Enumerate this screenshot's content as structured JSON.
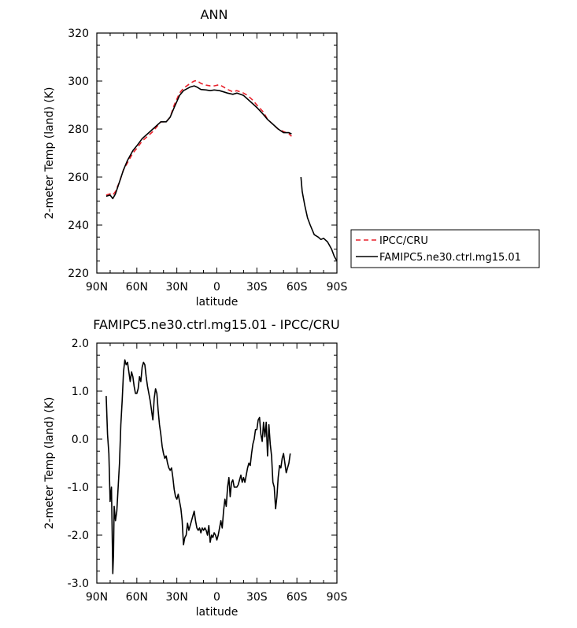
{
  "chart_data": [
    {
      "type": "line",
      "title": "ANN",
      "xlabel": "latitude",
      "ylabel": "2-meter Temp (land) (K)",
      "x_ticks": [
        "90N",
        "60N",
        "30N",
        "0",
        "30S",
        "60S",
        "90S"
      ],
      "y_ticks": [
        "320",
        "300",
        "280",
        "260",
        "240",
        "220"
      ],
      "xlim": [
        90,
        -90
      ],
      "ylim": [
        220,
        320
      ],
      "legend_position": "right",
      "series": [
        {
          "name": "IPCC/CRU",
          "style": "dashed",
          "color": "#e8202a",
          "x": [
            83,
            80,
            78,
            76,
            73,
            70,
            67,
            63,
            60,
            56,
            52,
            48,
            45,
            42,
            38,
            35,
            32,
            28,
            25,
            20,
            17,
            15,
            12,
            8,
            5,
            2,
            -2,
            -5,
            -8,
            -12,
            -15,
            -20,
            -23,
            -27,
            -30,
            -35,
            -38,
            -42,
            -46,
            -50,
            -54,
            -56
          ],
          "y": [
            252.5,
            253,
            252.5,
            254,
            258,
            263,
            266,
            270,
            272,
            275,
            277,
            279,
            281,
            283,
            283,
            285,
            290,
            295,
            297,
            299,
            300,
            300.2,
            299,
            298.3,
            298,
            298,
            298.5,
            297.5,
            296.5,
            295.5,
            296,
            295,
            294,
            292,
            290,
            287,
            284,
            282,
            280,
            279,
            278,
            277
          ]
        },
        {
          "name": "FAMIPC5.ne30.ctrl.mg15.01",
          "style": "solid",
          "color": "#000000",
          "segments": [
            {
              "x": [
                83,
                80,
                78,
                76,
                73,
                70,
                67,
                63,
                60,
                56,
                52,
                48,
                45,
                42,
                38,
                35,
                32,
                28,
                25,
                20,
                17,
                15,
                12,
                8,
                5,
                2,
                -2,
                -5,
                -8,
                -12,
                -15,
                -20,
                -23,
                -27,
                -30,
                -35,
                -38,
                -42,
                -46,
                -50,
                -54,
                -56
              ],
              "y": [
                252,
                252.5,
                251,
                253,
                258,
                263,
                267,
                271,
                273,
                276,
                278,
                280,
                281.5,
                283,
                283,
                285,
                289,
                294,
                296,
                297.5,
                298,
                297.5,
                296.5,
                296.3,
                296,
                296.3,
                296,
                295.5,
                295,
                294.5,
                295,
                294,
                292.5,
                290.5,
                289,
                286,
                284,
                282,
                280,
                278.5,
                278.5,
                278
              ]
            },
            {
              "x": [
                -63,
                -64,
                -66,
                -68,
                -70,
                -73,
                -76,
                -78,
                -80,
                -83,
                -86,
                -88,
                -90
              ],
              "y": [
                260,
                254,
                248,
                243,
                240,
                236,
                235,
                234,
                234.5,
                233,
                230,
                227,
                225
              ]
            }
          ]
        }
      ]
    },
    {
      "type": "line",
      "title": "FAMIPC5.ne30.ctrl.mg15.01 - IPCC/CRU",
      "xlabel": "latitude",
      "ylabel": "2-meter Temp (land) (K)",
      "x_ticks": [
        "90N",
        "60N",
        "30N",
        "0",
        "30S",
        "60S",
        "90S"
      ],
      "y_ticks": [
        "2.0",
        "1.0",
        "0.0",
        "-1.0",
        "-2.0",
        "-3.0"
      ],
      "xlim": [
        90,
        -90
      ],
      "ylim": [
        -3.0,
        2.0
      ],
      "series": [
        {
          "style": "solid",
          "color": "#000000",
          "x": [
            83,
            82,
            81,
            80,
            79,
            78,
            77.5,
            77,
            76,
            75,
            74,
            73,
            72,
            71,
            70,
            69,
            68,
            67,
            66,
            65,
            64,
            63,
            62,
            61,
            60,
            59,
            58,
            57,
            56,
            55,
            54,
            53,
            52,
            51,
            50,
            49,
            48,
            47,
            46,
            45,
            44,
            43,
            42,
            41,
            40,
            39,
            38,
            37,
            36,
            35,
            34,
            33,
            32,
            31,
            30,
            29,
            28,
            27,
            26,
            25,
            24,
            23,
            22,
            21,
            20,
            19,
            18,
            17,
            16,
            15,
            14,
            13,
            12,
            11,
            10,
            9,
            8,
            7,
            6,
            5,
            4,
            3,
            2,
            1,
            0,
            -1,
            -2,
            -3,
            -4,
            -5,
            -6,
            -7,
            -8,
            -9,
            -10,
            -11,
            -12,
            -13,
            -14,
            -15,
            -16,
            -17,
            -18,
            -19,
            -20,
            -21,
            -22,
            -23,
            -24,
            -25,
            -26,
            -27,
            -28,
            -29,
            -30,
            -31,
            -32,
            -33,
            -34,
            -35,
            -36,
            -37,
            -38,
            -39,
            -40,
            -41,
            -42,
            -43,
            -44,
            -45,
            -46,
            -47,
            -48,
            -49,
            -50,
            -51,
            -52,
            -53,
            -54,
            -55
          ],
          "y": [
            0.9,
            0.1,
            -0.3,
            -1.3,
            -1.0,
            -2.8,
            -2.4,
            -1.4,
            -1.7,
            -1.5,
            -1.0,
            -0.5,
            0.3,
            0.8,
            1.4,
            1.65,
            1.55,
            1.6,
            1.4,
            1.2,
            1.4,
            1.3,
            1.1,
            0.95,
            0.95,
            1.05,
            1.3,
            1.2,
            1.5,
            1.6,
            1.55,
            1.3,
            1.1,
            0.95,
            0.8,
            0.6,
            0.4,
            0.85,
            1.05,
            0.95,
            0.6,
            0.3,
            0.1,
            -0.15,
            -0.3,
            -0.4,
            -0.35,
            -0.5,
            -0.6,
            -0.65,
            -0.6,
            -0.8,
            -1.05,
            -1.2,
            -1.25,
            -1.15,
            -1.3,
            -1.45,
            -1.7,
            -2.2,
            -2.05,
            -2.0,
            -1.75,
            -1.9,
            -1.8,
            -1.7,
            -1.6,
            -1.5,
            -1.7,
            -1.85,
            -1.9,
            -1.85,
            -1.95,
            -1.85,
            -1.9,
            -1.85,
            -1.9,
            -2.0,
            -1.8,
            -2.15,
            -2.0,
            -2.05,
            -1.95,
            -2.0,
            -2.1,
            -2.0,
            -1.85,
            -1.7,
            -1.85,
            -1.5,
            -1.25,
            -1.4,
            -1.0,
            -0.8,
            -1.2,
            -0.9,
            -0.85,
            -1.0,
            -1.0,
            -1.0,
            -0.95,
            -0.85,
            -0.75,
            -0.9,
            -0.8,
            -0.9,
            -0.75,
            -0.6,
            -0.5,
            -0.55,
            -0.3,
            -0.1,
            0.0,
            0.2,
            0.2,
            0.4,
            0.45,
            0.1,
            -0.05,
            0.35,
            0.05,
            0.35,
            -0.35,
            0.3,
            -0.1,
            -0.35,
            -0.9,
            -1.0,
            -1.45,
            -1.2,
            -0.8,
            -0.55,
            -0.6,
            -0.4,
            -0.3,
            -0.5,
            -0.7,
            -0.6,
            -0.5,
            -0.3
          ]
        }
      ]
    }
  ]
}
